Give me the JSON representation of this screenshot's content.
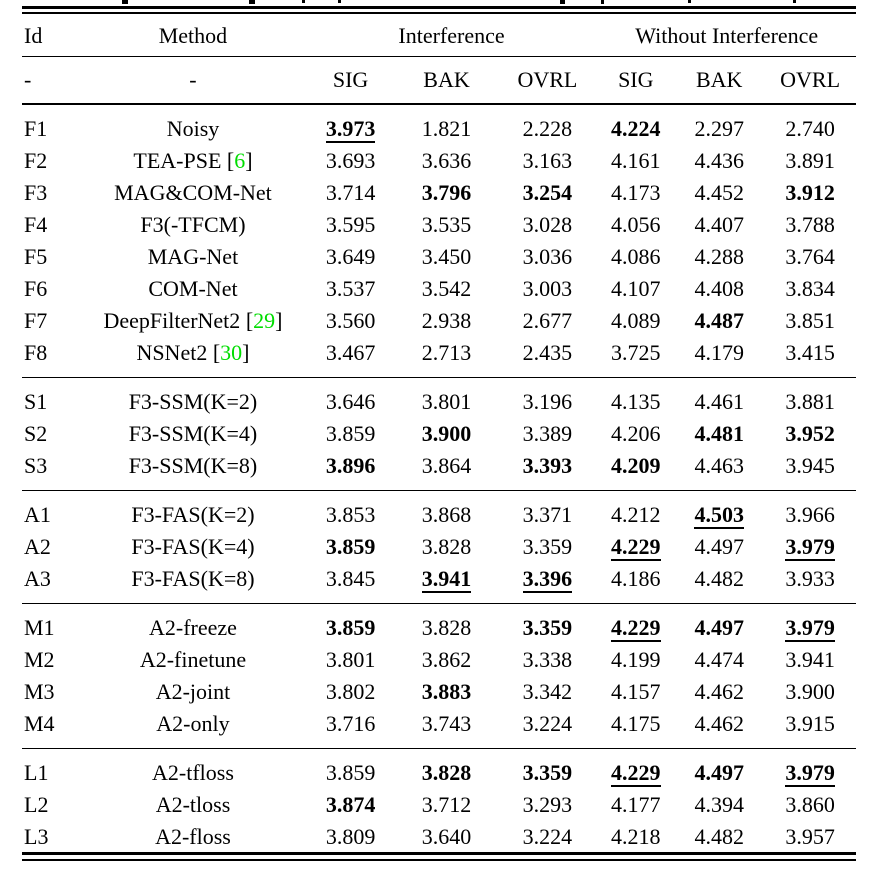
{
  "colors": {
    "citation_green": "#00dd00",
    "text": "#000000",
    "background": "#ffffff"
  },
  "table": {
    "headers": {
      "id": "Id",
      "method": "Method",
      "group1": "Interference",
      "group2": "Without Interference"
    },
    "subheader": [
      "-",
      "-",
      "SIG",
      "BAK",
      "OVRL",
      "SIG",
      "BAK",
      "OVRL"
    ],
    "sections": [
      {
        "name": "baselines",
        "rows": [
          {
            "id": "F1",
            "method": "Noisy",
            "cite": null,
            "values": [
              "3.973",
              "1.821",
              "2.228",
              "4.224",
              "2.297",
              "2.740"
            ],
            "styles": [
              "bu",
              "n",
              "n",
              "b",
              "n",
              "n"
            ]
          },
          {
            "id": "F2",
            "method": "TEA-PSE",
            "cite": "6",
            "values": [
              "3.693",
              "3.636",
              "3.163",
              "4.161",
              "4.436",
              "3.891"
            ],
            "styles": [
              "n",
              "n",
              "n",
              "n",
              "n",
              "n"
            ]
          },
          {
            "id": "F3",
            "method": "MAG&COM-Net",
            "cite": null,
            "values": [
              "3.714",
              "3.796",
              "3.254",
              "4.173",
              "4.452",
              "3.912"
            ],
            "styles": [
              "n",
              "b",
              "b",
              "n",
              "n",
              "b"
            ]
          },
          {
            "id": "F4",
            "method": "F3(-TFCM)",
            "cite": null,
            "values": [
              "3.595",
              "3.535",
              "3.028",
              "4.056",
              "4.407",
              "3.788"
            ],
            "styles": [
              "n",
              "n",
              "n",
              "n",
              "n",
              "n"
            ]
          },
          {
            "id": "F5",
            "method": "MAG-Net",
            "cite": null,
            "values": [
              "3.649",
              "3.450",
              "3.036",
              "4.086",
              "4.288",
              "3.764"
            ],
            "styles": [
              "n",
              "n",
              "n",
              "n",
              "n",
              "n"
            ]
          },
          {
            "id": "F6",
            "method": "COM-Net",
            "cite": null,
            "values": [
              "3.537",
              "3.542",
              "3.003",
              "4.107",
              "4.408",
              "3.834"
            ],
            "styles": [
              "n",
              "n",
              "n",
              "n",
              "n",
              "n"
            ]
          },
          {
            "id": "F7",
            "method": "DeepFilterNet2",
            "cite": "29",
            "values": [
              "3.560",
              "2.938",
              "2.677",
              "4.089",
              "4.487",
              "3.851"
            ],
            "styles": [
              "n",
              "n",
              "n",
              "n",
              "b",
              "n"
            ]
          },
          {
            "id": "F8",
            "method": "NSNet2",
            "cite": "30",
            "values": [
              "3.467",
              "2.713",
              "2.435",
              "3.725",
              "4.179",
              "3.415"
            ],
            "styles": [
              "n",
              "n",
              "n",
              "n",
              "n",
              "n"
            ]
          }
        ]
      },
      {
        "name": "ssm",
        "rows": [
          {
            "id": "S1",
            "method": "F3-SSM(K=2)",
            "cite": null,
            "values": [
              "3.646",
              "3.801",
              "3.196",
              "4.135",
              "4.461",
              "3.881"
            ],
            "styles": [
              "n",
              "n",
              "n",
              "n",
              "n",
              "n"
            ]
          },
          {
            "id": "S2",
            "method": "F3-SSM(K=4)",
            "cite": null,
            "values": [
              "3.859",
              "3.900",
              "3.389",
              "4.206",
              "4.481",
              "3.952"
            ],
            "styles": [
              "n",
              "b",
              "n",
              "n",
              "b",
              "b"
            ]
          },
          {
            "id": "S3",
            "method": "F3-SSM(K=8)",
            "cite": null,
            "values": [
              "3.896",
              "3.864",
              "3.393",
              "4.209",
              "4.463",
              "3.945"
            ],
            "styles": [
              "b",
              "n",
              "b",
              "b",
              "n",
              "n"
            ]
          }
        ]
      },
      {
        "name": "fas",
        "rows": [
          {
            "id": "A1",
            "method": "F3-FAS(K=2)",
            "cite": null,
            "values": [
              "3.853",
              "3.868",
              "3.371",
              "4.212",
              "4.503",
              "3.966"
            ],
            "styles": [
              "n",
              "n",
              "n",
              "n",
              "bu",
              "n"
            ]
          },
          {
            "id": "A2",
            "method": "F3-FAS(K=4)",
            "cite": null,
            "values": [
              "3.859",
              "3.828",
              "3.359",
              "4.229",
              "4.497",
              "3.979"
            ],
            "styles": [
              "b",
              "n",
              "n",
              "bu",
              "n",
              "bu"
            ]
          },
          {
            "id": "A3",
            "method": "F3-FAS(K=8)",
            "cite": null,
            "values": [
              "3.845",
              "3.941",
              "3.396",
              "4.186",
              "4.482",
              "3.933"
            ],
            "styles": [
              "n",
              "bu",
              "bu",
              "n",
              "n",
              "n"
            ]
          }
        ]
      },
      {
        "name": "training-mode",
        "rows": [
          {
            "id": "M1",
            "method": "A2-freeze",
            "cite": null,
            "values": [
              "3.859",
              "3.828",
              "3.359",
              "4.229",
              "4.497",
              "3.979"
            ],
            "styles": [
              "b",
              "n",
              "b",
              "bu",
              "b",
              "bu"
            ]
          },
          {
            "id": "M2",
            "method": "A2-finetune",
            "cite": null,
            "values": [
              "3.801",
              "3.862",
              "3.338",
              "4.199",
              "4.474",
              "3.941"
            ],
            "styles": [
              "n",
              "n",
              "n",
              "n",
              "n",
              "n"
            ]
          },
          {
            "id": "M3",
            "method": "A2-joint",
            "cite": null,
            "values": [
              "3.802",
              "3.883",
              "3.342",
              "4.157",
              "4.462",
              "3.900"
            ],
            "styles": [
              "n",
              "b",
              "n",
              "n",
              "n",
              "n"
            ]
          },
          {
            "id": "M4",
            "method": "A2-only",
            "cite": null,
            "values": [
              "3.716",
              "3.743",
              "3.224",
              "4.175",
              "4.462",
              "3.915"
            ],
            "styles": [
              "n",
              "n",
              "n",
              "n",
              "n",
              "n"
            ]
          }
        ]
      },
      {
        "name": "loss",
        "rows": [
          {
            "id": "L1",
            "method": "A2-tfloss",
            "cite": null,
            "values": [
              "3.859",
              "3.828",
              "3.359",
              "4.229",
              "4.497",
              "3.979"
            ],
            "styles": [
              "n",
              "b",
              "b",
              "bu",
              "b",
              "bu"
            ]
          },
          {
            "id": "L2",
            "method": "A2-tloss",
            "cite": null,
            "values": [
              "3.874",
              "3.712",
              "3.293",
              "4.177",
              "4.394",
              "3.860"
            ],
            "styles": [
              "b",
              "n",
              "n",
              "n",
              "n",
              "n"
            ]
          },
          {
            "id": "L3",
            "method": "A2-floss",
            "cite": null,
            "values": [
              "3.809",
              "3.640",
              "3.224",
              "4.218",
              "4.482",
              "3.957"
            ],
            "styles": [
              "n",
              "n",
              "n",
              "n",
              "n",
              "n"
            ]
          }
        ]
      }
    ]
  }
}
